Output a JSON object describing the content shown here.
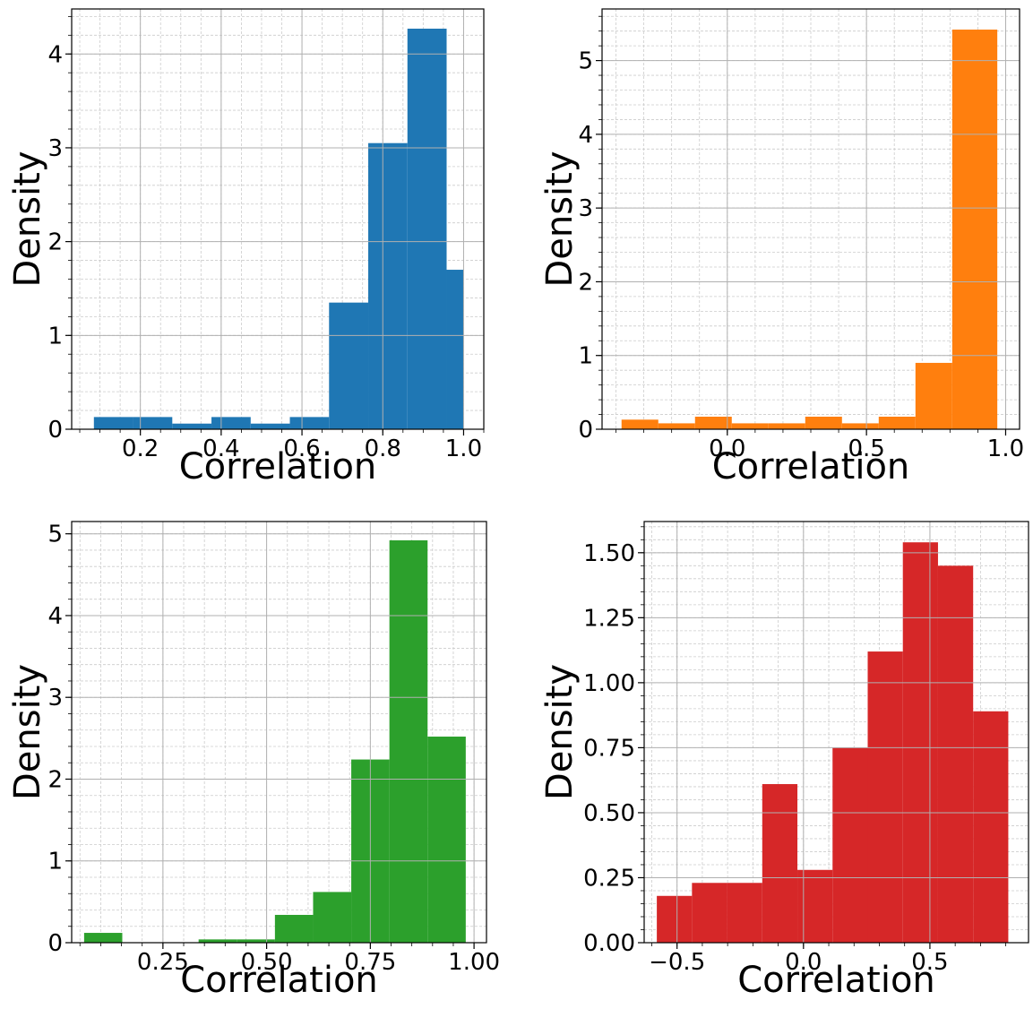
{
  "chart_data": [
    {
      "type": "bar",
      "histogram": true,
      "color": "#1f77b4",
      "xlabel": "Correlation",
      "ylabel": "Density",
      "xlim": [
        0.03,
        1.05
      ],
      "ylim": [
        0,
        4.48
      ],
      "xticks": [
        0.2,
        0.4,
        0.6,
        0.8,
        1.0
      ],
      "xtick_labels": [
        "0.2",
        "0.4",
        "0.6",
        "0.8",
        "1.0"
      ],
      "yticks": [
        0,
        1,
        2,
        3,
        4
      ],
      "ytick_labels": [
        "0",
        "1",
        "2",
        "3",
        "4"
      ],
      "xminor_step": 0.05,
      "yminor_step": 0.2,
      "bin_edges": [
        0.085,
        0.182,
        0.279,
        0.376,
        0.473,
        0.57,
        0.667,
        0.764,
        0.861,
        0.958,
        1.0
      ],
      "values": [
        0.13,
        0.13,
        0.06,
        0.13,
        0.06,
        0.13,
        1.35,
        3.05,
        4.27,
        1.7
      ],
      "grid": true
    },
    {
      "type": "bar",
      "histogram": true,
      "color": "#ff7f0e",
      "xlabel": "Correlation",
      "ylabel": "Density",
      "xlim": [
        -0.45,
        1.05
      ],
      "ylim": [
        0,
        5.7
      ],
      "xticks": [
        0.0,
        0.5,
        1.0
      ],
      "xtick_labels": [
        "0.0",
        "0.5",
        "1.0"
      ],
      "yticks": [
        0,
        1,
        2,
        3,
        4,
        5
      ],
      "ytick_labels": [
        "0",
        "1",
        "2",
        "3",
        "4",
        "5"
      ],
      "xminor_step": 0.1,
      "yminor_step": 0.2,
      "bin_edges": [
        -0.38,
        -0.248,
        -0.116,
        0.016,
        0.148,
        0.28,
        0.412,
        0.544,
        0.676,
        0.808,
        0.97
      ],
      "values": [
        0.13,
        0.08,
        0.17,
        0.08,
        0.08,
        0.17,
        0.08,
        0.17,
        0.9,
        5.42
      ],
      "grid": true
    },
    {
      "type": "bar",
      "histogram": true,
      "color": "#2ca02c",
      "xlabel": "Correlation",
      "ylabel": "Density",
      "xlim": [
        0.03,
        1.03
      ],
      "ylim": [
        0,
        5.15
      ],
      "xticks": [
        0.25,
        0.5,
        0.75,
        1.0
      ],
      "xtick_labels": [
        "0.25",
        "0.50",
        "0.75",
        "1.00"
      ],
      "yticks": [
        0,
        1,
        2,
        3,
        4,
        5
      ],
      "ytick_labels": [
        "0",
        "1",
        "2",
        "3",
        "4",
        "5"
      ],
      "xminor_step": 0.05,
      "yminor_step": 0.2,
      "bin_edges": [
        0.06,
        0.152,
        0.244,
        0.336,
        0.428,
        0.52,
        0.612,
        0.704,
        0.796,
        0.888,
        0.98
      ],
      "values": [
        0.12,
        0.0,
        0.0,
        0.04,
        0.04,
        0.34,
        0.62,
        2.24,
        4.92,
        2.52
      ],
      "grid": true
    },
    {
      "type": "bar",
      "histogram": true,
      "color": "#d62728",
      "xlabel": "Correlation",
      "ylabel": "Density",
      "xlim": [
        -0.63,
        0.89
      ],
      "ylim": [
        0,
        1.62
      ],
      "xticks": [
        -0.5,
        0.0,
        0.5
      ],
      "xtick_labels": [
        "−0.5",
        "0.0",
        "0.5"
      ],
      "yticks": [
        0.0,
        0.25,
        0.5,
        0.75,
        1.0,
        1.25,
        1.5
      ],
      "ytick_labels": [
        "0.00",
        "0.25",
        "0.50",
        "0.75",
        "1.00",
        "1.25",
        "1.50"
      ],
      "xminor_step": 0.1,
      "yminor_step": 0.05,
      "bin_edges": [
        -0.58,
        -0.441,
        -0.302,
        -0.163,
        -0.024,
        0.115,
        0.254,
        0.393,
        0.532,
        0.671,
        0.81
      ],
      "values": [
        0.18,
        0.23,
        0.23,
        0.61,
        0.28,
        0.75,
        1.12,
        1.54,
        1.45,
        0.89
      ],
      "grid": true
    }
  ]
}
